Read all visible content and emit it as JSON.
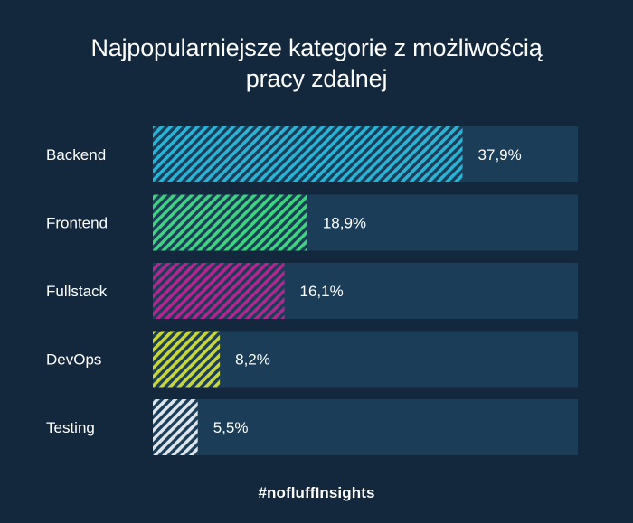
{
  "title_line1": "Najpopularniejsze kategorie z możliwością",
  "title_line2": "pracy zdalnej",
  "footer_hashtag": "#nofluffInsights",
  "colors": {
    "background": "#13283d",
    "track": "#1b3d57",
    "backend": "#2bb3d6",
    "frontend": "#3fd27f",
    "fullstack": "#b3268f",
    "devops": "#c8d63a",
    "testing": "#dfe5ea"
  },
  "chart_data": {
    "type": "bar",
    "orientation": "horizontal",
    "categories": [
      "Backend",
      "Frontend",
      "Fullstack",
      "DevOps",
      "Testing"
    ],
    "values": [
      37.9,
      18.9,
      16.1,
      8.2,
      5.5
    ],
    "value_labels": [
      "37,9%",
      "18,9%",
      "16,1%",
      "8,2%",
      "5,5%"
    ],
    "unit": "%",
    "xlim": [
      0,
      52
    ],
    "grid": false,
    "legend": "none",
    "bar_colors": [
      "#2bb3d6",
      "#3fd27f",
      "#b3268f",
      "#c8d63a",
      "#dfe5ea"
    ]
  }
}
